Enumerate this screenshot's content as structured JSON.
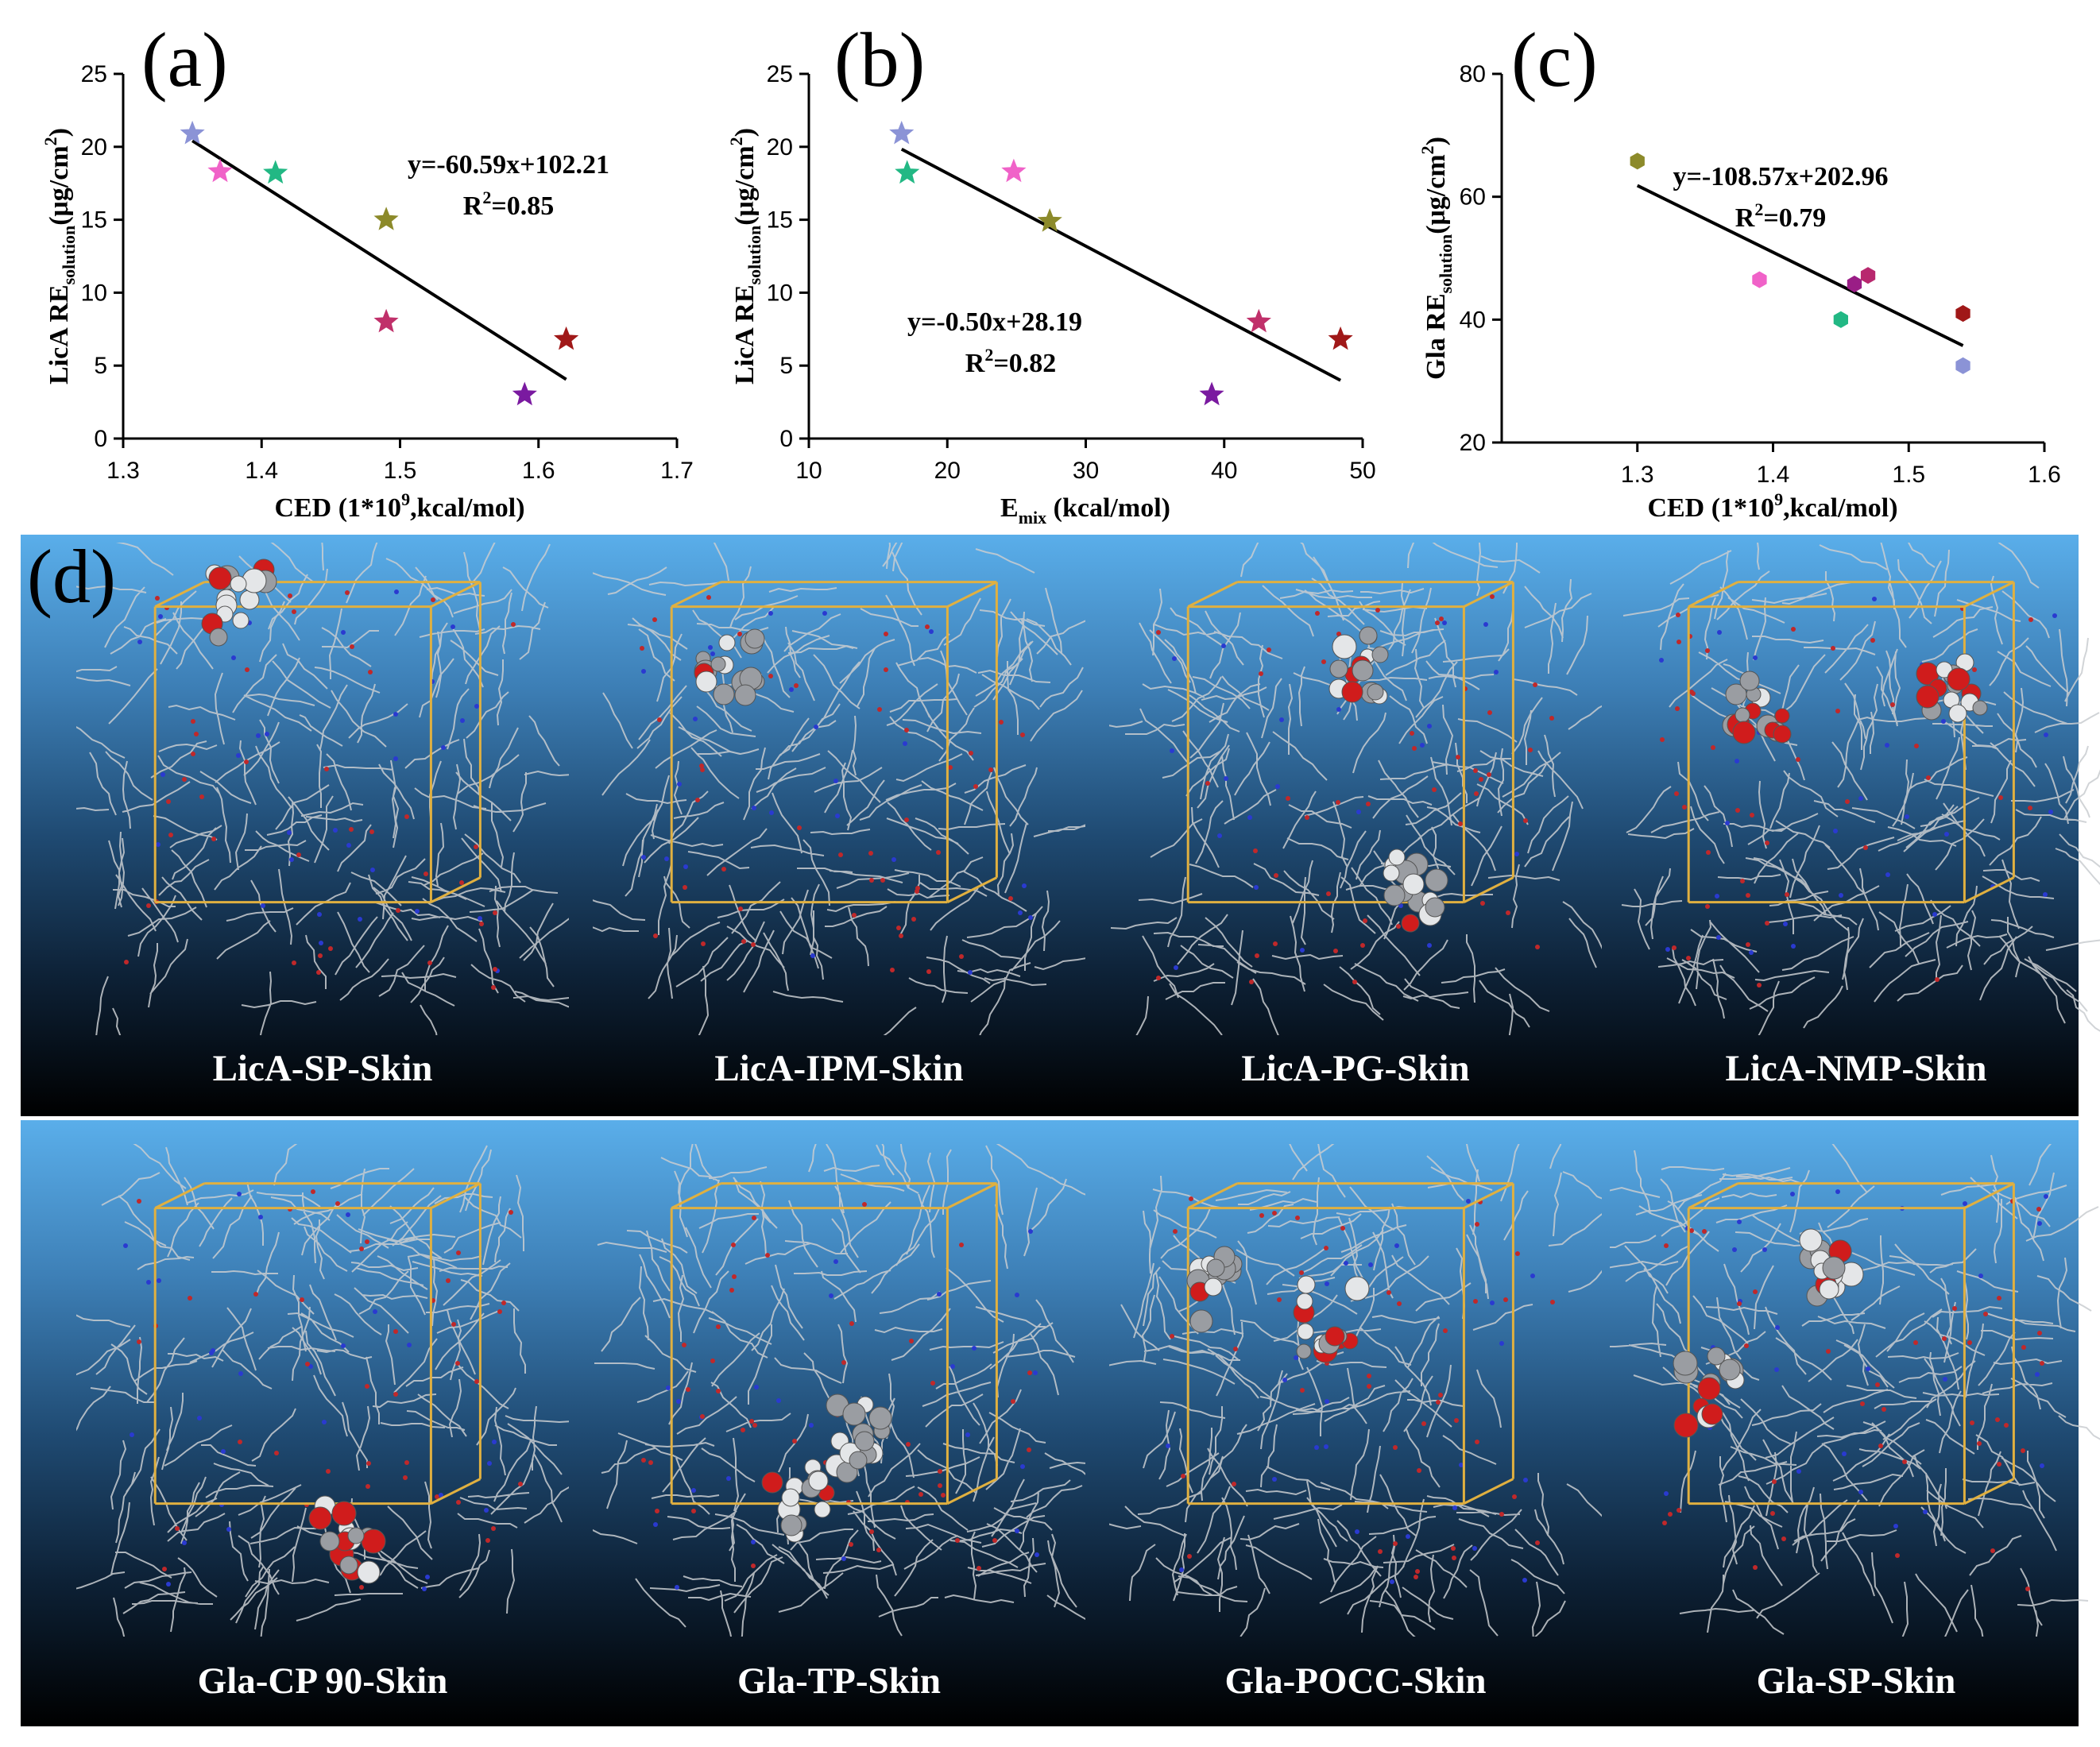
{
  "chart_data": [
    {
      "type": "scatter",
      "panel_label": "(a)",
      "xlabel": "CED (1*10",
      "xlabel_sup": "9",
      "xlabel_tail": ",kcal/mol)",
      "ylabel_main": "LicA RE",
      "ylabel_sub": "solution",
      "ylabel_unit": "(μg/cm",
      "ylabel_sup": "2",
      "ylabel_tail": ")",
      "xlim": [
        1.3,
        1.7
      ],
      "ylim": [
        0,
        25
      ],
      "xticks": [
        1.3,
        1.4,
        1.5,
        1.6,
        1.7
      ],
      "yticks": [
        0,
        5,
        10,
        15,
        20,
        25
      ],
      "xtick_labels": [
        "1.3",
        "1.4",
        "1.5",
        "1.6",
        "1.7"
      ],
      "ytick_labels": [
        "0",
        "5",
        "10",
        "15",
        "20",
        "25"
      ],
      "marker": "star",
      "points": [
        {
          "x": 1.35,
          "y": 20.9,
          "color": "#8b93d6"
        },
        {
          "x": 1.37,
          "y": 18.3,
          "color": "#f062c8"
        },
        {
          "x": 1.41,
          "y": 18.2,
          "color": "#22b884"
        },
        {
          "x": 1.49,
          "y": 15.0,
          "color": "#8c8a2a"
        },
        {
          "x": 1.49,
          "y": 8.0,
          "color": "#c0306a"
        },
        {
          "x": 1.59,
          "y": 3.0,
          "color": "#7a1aa0"
        },
        {
          "x": 1.62,
          "y": 6.8,
          "color": "#a01818"
        }
      ],
      "fit": {
        "slope": -60.59,
        "intercept": 102.21,
        "x_range": [
          1.35,
          1.62
        ]
      },
      "equation": "y=-60.59x+102.21",
      "r2_prefix": "R",
      "r2_sup": "2",
      "r2_value": "=0.85"
    },
    {
      "type": "scatter",
      "panel_label": "(b)",
      "xlabel": "E",
      "xlabel_sub": "mix",
      "xlabel_tail": " (kcal/mol)",
      "ylabel_main": "LicA RE",
      "ylabel_sub": "solution",
      "ylabel_unit": "(μg/cm",
      "ylabel_sup": "2",
      "ylabel_tail": ")",
      "xlim": [
        10,
        50
      ],
      "ylim": [
        0,
        25
      ],
      "xticks": [
        10,
        20,
        30,
        40,
        50
      ],
      "yticks": [
        0,
        5,
        10,
        15,
        20,
        25
      ],
      "xtick_labels": [
        "10",
        "20",
        "30",
        "40",
        "50"
      ],
      "ytick_labels": [
        "0",
        "5",
        "10",
        "15",
        "20",
        "25"
      ],
      "marker": "star",
      "points": [
        {
          "x": 16.7,
          "y": 20.9,
          "color": "#8b93d6"
        },
        {
          "x": 17.1,
          "y": 18.2,
          "color": "#22b884"
        },
        {
          "x": 24.8,
          "y": 18.3,
          "color": "#f062c8"
        },
        {
          "x": 27.4,
          "y": 14.9,
          "color": "#8c8a2a"
        },
        {
          "x": 42.5,
          "y": 8.0,
          "color": "#c0306a"
        },
        {
          "x": 39.1,
          "y": 3.0,
          "color": "#7a1aa0"
        },
        {
          "x": 48.4,
          "y": 6.8,
          "color": "#a01818"
        }
      ],
      "fit": {
        "slope": -0.5,
        "intercept": 28.19,
        "x_range": [
          16.7,
          48.4
        ]
      },
      "equation": "y=-0.50x+28.19",
      "r2_prefix": "R",
      "r2_sup": "2",
      "r2_value": "=0.82"
    },
    {
      "type": "scatter",
      "panel_label": "(c)",
      "xlabel": "CED (1*10",
      "xlabel_sup": "9",
      "xlabel_tail": ",kcal/mol)",
      "ylabel_main": "Gla RE",
      "ylabel_sub": "solution",
      "ylabel_unit": "(μg/cm",
      "ylabel_sup": "2",
      "ylabel_tail": ")",
      "xlim": [
        1.2,
        1.6
      ],
      "ylim": [
        20,
        80
      ],
      "xticks": [
        1.3,
        1.4,
        1.5,
        1.6
      ],
      "yticks": [
        20,
        40,
        60,
        80
      ],
      "xtick_labels": [
        "1.3",
        "1.4",
        "1.5",
        "1.6"
      ],
      "ytick_labels": [
        "20",
        "40",
        "60",
        "80"
      ],
      "marker": "hexagon",
      "points": [
        {
          "x": 1.3,
          "y": 65.8,
          "color": "#8c8a2a"
        },
        {
          "x": 1.39,
          "y": 46.5,
          "color": "#f062c8"
        },
        {
          "x": 1.45,
          "y": 40.0,
          "color": "#22b884"
        },
        {
          "x": 1.46,
          "y": 45.8,
          "color": "#9a1e86"
        },
        {
          "x": 1.47,
          "y": 47.2,
          "color": "#b8286e"
        },
        {
          "x": 1.54,
          "y": 41.0,
          "color": "#a01818"
        },
        {
          "x": 1.54,
          "y": 32.5,
          "color": "#8b93d6"
        }
      ],
      "fit": {
        "slope": -108.57,
        "intercept": 202.96,
        "x_range": [
          1.3,
          1.54
        ]
      },
      "equation": "y=-108.57x+202.96",
      "r2_prefix": "R",
      "r2_sup": "2",
      "r2_value": "=0.79"
    }
  ],
  "panel_d": {
    "label": "(d)",
    "top_row": [
      "LicA-SP-Skin",
      "LicA-IPM-Skin",
      "LicA-PG-Skin",
      "LicA-NMP-Skin"
    ],
    "bottom_row": [
      "Gla-CP 90-Skin",
      "Gla-TP-Skin",
      "Gla-POCC-Skin",
      "Gla-SP-Skin"
    ]
  }
}
